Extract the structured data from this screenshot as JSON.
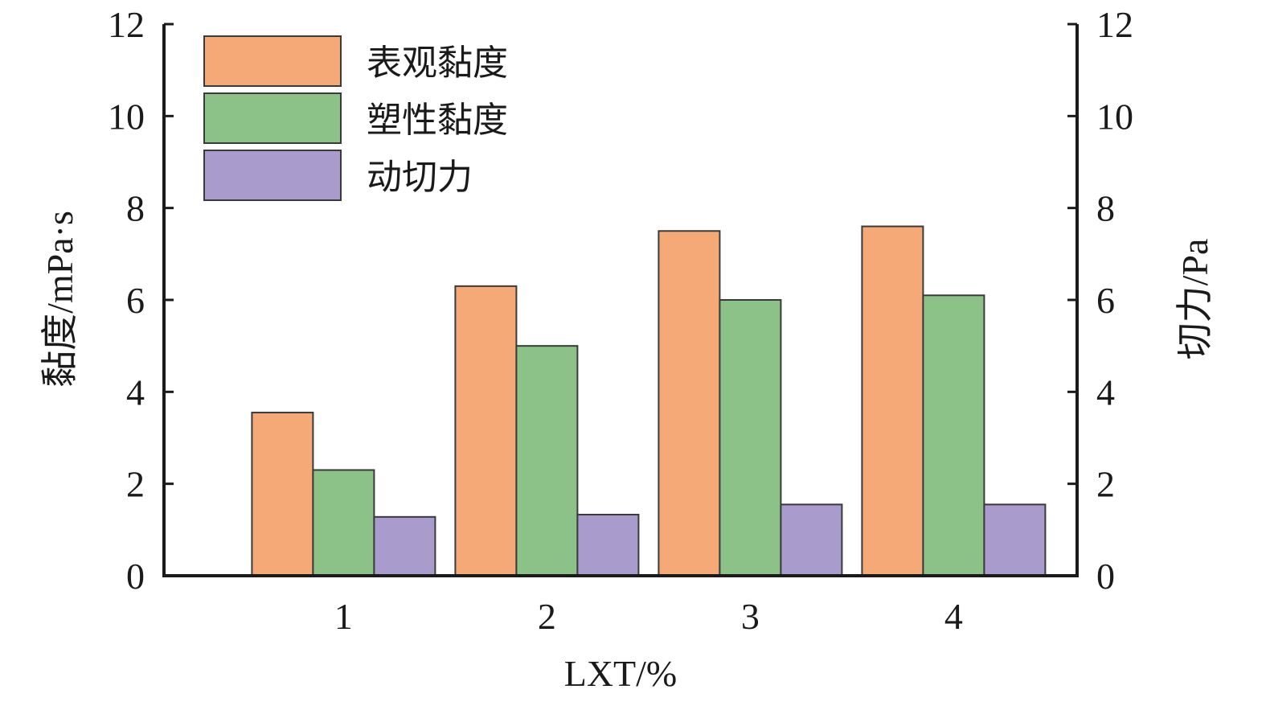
{
  "chart_data": {
    "type": "bar",
    "categories": [
      "1",
      "2",
      "3",
      "4"
    ],
    "series": [
      {
        "name": "表观黏度",
        "values": [
          3.55,
          6.3,
          7.5,
          7.6
        ],
        "color": "#f4a976"
      },
      {
        "name": "塑性黏度",
        "values": [
          2.3,
          5.0,
          6.0,
          6.1
        ],
        "color": "#8cc287"
      },
      {
        "name": "动切力",
        "values": [
          1.28,
          1.33,
          1.55,
          1.55
        ],
        "color": "#a99bcc"
      }
    ],
    "xlabel": "LXT/%",
    "ylabel": "黏度/mPa·s",
    "y2label": "切力/Pa",
    "ylim": [
      0,
      12
    ],
    "y2lim": [
      0,
      12
    ],
    "yticks": [
      "0",
      "2",
      "4",
      "6",
      "8",
      "10",
      "12"
    ],
    "y2ticks": [
      "0",
      "2",
      "4",
      "6",
      "8",
      "10",
      "12"
    ],
    "legend_position": "top-left",
    "grid": false
  }
}
